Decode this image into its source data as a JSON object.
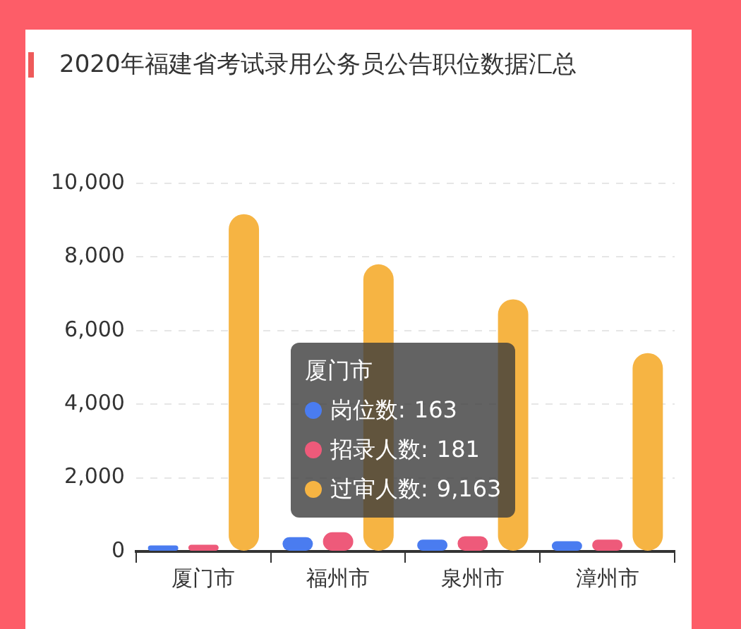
{
  "chart_data": {
    "type": "bar",
    "title": "2020年福建省考试录用公务员公告职位数据汇总",
    "categories": [
      "厦门市",
      "福州市",
      "泉州市",
      "漳州市"
    ],
    "series": [
      {
        "name": "岗位数:",
        "color": "#4a7cf0",
        "values": [
          163,
          390,
          320,
          280
        ]
      },
      {
        "name": "招录人数:",
        "color": "#ee5a7a",
        "values": [
          181,
          520,
          410,
          320
        ]
      },
      {
        "name": "过审人数:",
        "color": "#f6b443",
        "values": [
          9163,
          7800,
          6850,
          5390
        ]
      }
    ],
    "annotations": [
      "163",
      "181",
      "9,163"
    ],
    "legend_title": "厦门市",
    "legend": "center",
    "ylim": [
      0,
      10000
    ],
    "yticks": [
      {
        "value": 0,
        "label": "0"
      },
      {
        "value": 2000,
        "label": "2,000"
      },
      {
        "value": 4000,
        "label": "4,000"
      },
      {
        "value": 6000,
        "label": "6,000"
      },
      {
        "value": 8000,
        "label": "8,000"
      },
      {
        "value": 10000,
        "label": "10,000"
      }
    ],
    "grid": "y"
  }
}
